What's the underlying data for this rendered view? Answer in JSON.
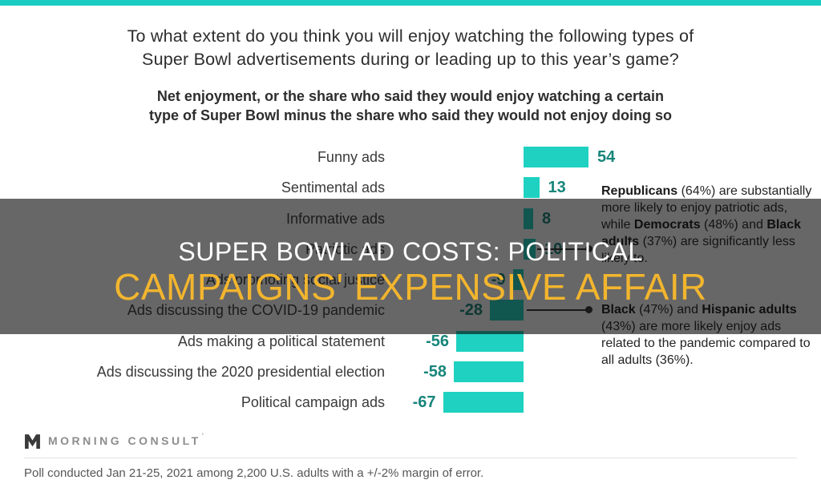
{
  "page": {
    "top_strip_color": "#1accc2",
    "overlay_tint": "rgba(10,10,10,0.62)"
  },
  "title": {
    "line1": "To what extent do you think you will enjoy watching the following types of",
    "line2": "Super Bowl advertisements during or leading up to this year’s game?"
  },
  "subtitle": {
    "line1": "Net enjoyment, or the share who said they would enjoy watching a certain",
    "line2": "type of Super Bowl minus the share who said they would not enjoy doing so"
  },
  "chart_data": {
    "type": "bar",
    "orientation": "horizontal",
    "title": "Net enjoyment of Super Bowl ad types",
    "unit": "net enjoyment (share enjoy minus share not enjoy)",
    "categories": [
      "Funny ads",
      "Sentimental ads",
      "Informative ads",
      "Patriotic ads",
      "Ads promoting social justice",
      "Ads discussing the COVID-19 pandemic",
      "Ads making a political statement",
      "Ads discussing the 2020 presidential election",
      "Political campaign ads"
    ],
    "values": [
      54,
      13,
      8,
      10,
      -9,
      -28,
      -56,
      -58,
      -67
    ],
    "xlim": [
      -70,
      60
    ],
    "grid": false,
    "bar_color": "#1ed1c1",
    "value_label_color": "#17857a",
    "connectors": [
      {
        "row": 3
      },
      {
        "row": 5
      }
    ]
  },
  "annotations": {
    "patriotic": {
      "segments": [
        {
          "text": "Republicans",
          "bold": true
        },
        {
          "text": " (64%) are substantially more likely to enjoy patriotic ads, while ",
          "bold": false
        },
        {
          "text": "Democrats",
          "bold": true
        },
        {
          "text": " (48%) and ",
          "bold": false
        },
        {
          "text": "Black adults",
          "bold": true
        },
        {
          "text": " (37%) are significantly less likely to.",
          "bold": false
        }
      ]
    },
    "pandemic": {
      "segments": [
        {
          "text": "Black",
          "bold": true
        },
        {
          "text": " (47%) and ",
          "bold": false
        },
        {
          "text": "Hispanic adults",
          "bold": true
        },
        {
          "text": " (43%) are more likely enjoy ads related to the pandemic compared to all adults (36%).",
          "bold": false
        }
      ]
    }
  },
  "overlay": {
    "headline_line1": "SUPER BOWL AD COSTS: POLITICAL",
    "headline_line2": "CAMPAIGNS' EXPENSIVE AFFAIR",
    "line1_color": "#ffffff",
    "line2_color": "#f2b52e"
  },
  "footer": {
    "logo_text": "MORNING CONSULT",
    "logo_tick": "'",
    "note": "Poll conducted Jan 21-25, 2021 among 2,200 U.S. adults with a +/-2% margin of error."
  }
}
